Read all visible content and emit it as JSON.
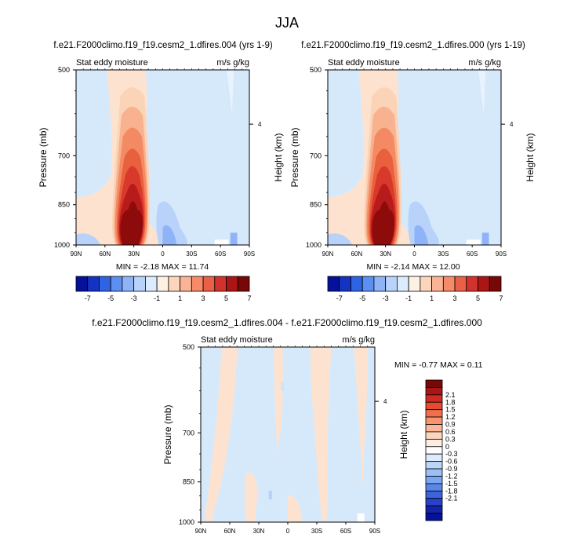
{
  "page_title": "JJA",
  "colors": {
    "bg_blue": "#d6e9fb",
    "warm_light": "#fde3cf",
    "border": "#000000"
  },
  "chart_data": [
    {
      "type": "heatmap",
      "title": "f.e21.F2000climo.f19_f19.cesm2_1.dfires.004 (yrs 1-9)",
      "left_label": "Stat eddy moisture",
      "right_label": "m/s g/kg",
      "ylabel": "Pressure (mb)",
      "ylabel_right": "Height (km)",
      "x_ticks": [
        "90N",
        "60N",
        "30N",
        "0",
        "30S",
        "60S",
        "90S"
      ],
      "y_ticks": [
        "500",
        "700",
        "850",
        "1000"
      ],
      "right_ticks": [
        "4"
      ],
      "min_label": "MIN = ",
      "min_value": "-2.18",
      "max_label": "MAX = ",
      "max_value": "11.74",
      "stats_sep": "  "
    },
    {
      "type": "heatmap",
      "title": "f.e21.F2000climo.f19_f19.cesm2_1.dfires.000 (yrs 1-19)",
      "left_label": "Stat eddy moisture",
      "right_label": "m/s g/kg",
      "ylabel": "Pressure (mb)",
      "ylabel_right": "Height (km)",
      "x_ticks": [
        "90N",
        "60N",
        "30N",
        "0",
        "30S",
        "60S",
        "90S"
      ],
      "y_ticks": [
        "500",
        "700",
        "850",
        "1000"
      ],
      "right_ticks": [
        "4"
      ],
      "min_label": "MIN = ",
      "min_value": "-2.14",
      "max_label": "MAX = ",
      "max_value": "12.00",
      "stats_sep": "  "
    },
    {
      "type": "heatmap",
      "title": "f.e21.F2000climo.f19_f19.cesm2_1.dfires.004 - f.e21.F2000climo.f19_f19.cesm2_1.dfires.000",
      "left_label": "Stat eddy moisture",
      "right_label": "m/s g/kg",
      "ylabel": "Pressure (mb)",
      "ylabel_right": "Height (km)",
      "x_ticks": [
        "90N",
        "60N",
        "30N",
        "0",
        "30S",
        "60S",
        "90S"
      ],
      "y_ticks": [
        "500",
        "700",
        "850",
        "1000"
      ],
      "right_ticks": [
        "4"
      ],
      "min_label": "MIN = ",
      "min_value": "-0.77",
      "max_label": "MAX = ",
      "max_value": "0.11",
      "stats_sep": "  "
    }
  ],
  "colorbar_top": {
    "colors": [
      "#05109b",
      "#1433c2",
      "#2e63e4",
      "#5c8ff2",
      "#8fb3f7",
      "#b8d2fa",
      "#dcebfd",
      "#fdf1e4",
      "#fcd6bc",
      "#fbb395",
      "#f68a69",
      "#ea5f46",
      "#d2322b",
      "#ac1515",
      "#780707"
    ],
    "labels": [
      "-7",
      "-5",
      "-3",
      "-1",
      "1",
      "3",
      "5",
      "7"
    ]
  },
  "colorbar_diff": {
    "colors": [
      "#780707",
      "#ac1515",
      "#cf2b20",
      "#e64a31",
      "#f16f4d",
      "#f89570",
      "#fbb79a",
      "#fdd5bf",
      "#feeee2",
      "#ffffff",
      "#dcebfd",
      "#bcd6fa",
      "#9cbff6",
      "#7aa6f2",
      "#5a86ea",
      "#3c64de",
      "#2841c6",
      "#1422a8",
      "#05109b"
    ],
    "labels": [
      "2.1",
      "1.8",
      "1.5",
      "1.2",
      "0.9",
      "0.6",
      "0.3",
      "0",
      "-0.3",
      "-0.6",
      "-0.9",
      "-1.2",
      "-1.5",
      "-1.8",
      "-2.1"
    ]
  }
}
